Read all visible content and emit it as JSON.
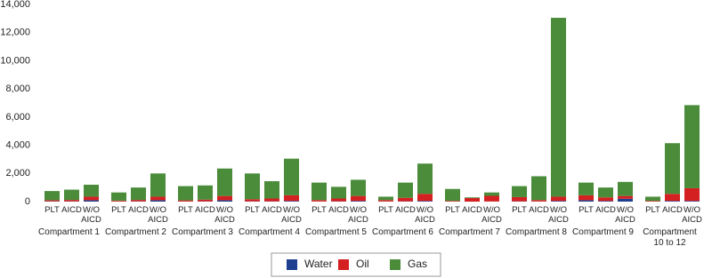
{
  "chart_data": {
    "type": "stacked-bar",
    "categories": [
      "PLT",
      "AICD",
      "W/O AICD",
      "PLT",
      "AICD",
      "W/O AICD",
      "PLT",
      "AICD",
      "W/O AICD",
      "PLT",
      "AICD",
      "W/O AICD",
      "PLT",
      "AICD",
      "W/O AICD",
      "PLT",
      "AICD",
      "W/O AICD",
      "PLT",
      "AICD",
      "W/O AICD",
      "PLT",
      "AICD",
      "W/O AICD",
      "PLT",
      "AICD",
      "W/O AICD",
      "PLT",
      "AICD",
      "W/O AICD"
    ],
    "groups": [
      "Compartment 1",
      "Compartment 2",
      "Compartment 3",
      "Compartment 4",
      "Compartment 5",
      "Compartment 6",
      "Compartment 7",
      "Compartment 8",
      "Compartment 9",
      "Compartment 10 to 12"
    ],
    "series": [
      {
        "name": "Water",
        "color": "#1f3f8f",
        "values": [
          20,
          20,
          100,
          10,
          20,
          100,
          10,
          20,
          100,
          20,
          20,
          50,
          10,
          20,
          50,
          10,
          20,
          50,
          0,
          0,
          10,
          20,
          10,
          50,
          100,
          50,
          200,
          0,
          50,
          50
        ]
      },
      {
        "name": "Oil",
        "color": "#d42020",
        "values": [
          80,
          100,
          250,
          60,
          100,
          250,
          80,
          120,
          300,
          150,
          200,
          400,
          100,
          200,
          350,
          100,
          250,
          500,
          50,
          250,
          400,
          300,
          100,
          300,
          350,
          250,
          200,
          50,
          500,
          900
        ]
      },
      {
        "name": "Gas",
        "color": "#4a8c3a",
        "values": [
          650,
          730,
          850,
          580,
          880,
          1650,
          1010,
          1010,
          1950,
          1830,
          1230,
          2600,
          1240,
          830,
          1150,
          240,
          1080,
          2150,
          850,
          50,
          240,
          780,
          1690,
          12700,
          900,
          700,
          1000,
          300,
          3600,
          5900
        ]
      }
    ],
    "ylim": [
      0,
      14000
    ],
    "yticks": [
      0,
      {
        "value": 2000,
        "label": "2,000"
      },
      {
        "value": 4000,
        "label": "4,000"
      },
      {
        "value": 6000,
        "label": "6,000"
      },
      {
        "value": 8000,
        "label": "8,000"
      },
      {
        "value": 10000,
        "label": "10,000"
      },
      {
        "value": 12000,
        "label": "12,000"
      },
      {
        "value": 14000,
        "label": "14,000"
      }
    ],
    "legend": "bottom"
  }
}
